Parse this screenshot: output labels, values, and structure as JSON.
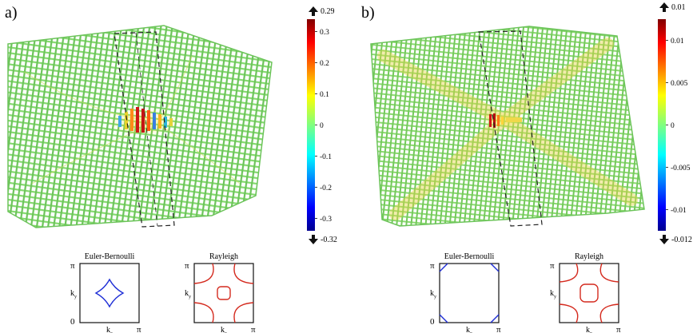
{
  "panels": [
    {
      "id": "a",
      "label": "a)",
      "colorbar": {
        "max_label": "0.29",
        "min_label": "-0.32",
        "ticks": [
          "0.3",
          "0.2",
          "0.1",
          "0",
          "-0.1",
          "-0.2",
          "-0.3"
        ],
        "tick_values": [
          0.3,
          0.2,
          0.1,
          0,
          -0.1,
          -0.2,
          -0.3
        ],
        "range": [
          -0.34,
          0.34
        ]
      },
      "insets": [
        {
          "title": "Euler-Bernoulli",
          "curve_color": "#1f2fd6",
          "contour": "diamond",
          "y_top": "π",
          "y_bottom": "0",
          "y_label": "k",
          "y_sub": "y",
          "x_label": "k",
          "x_sub": "x",
          "x_right": "π"
        },
        {
          "title": "Rayleigh",
          "curve_color": "#d42a1e",
          "contour": "cross-loop",
          "y_top": "π",
          "y_bottom": "",
          "y_label": "k",
          "y_sub": "y",
          "x_label": "k",
          "x_sub": "x",
          "x_right": "π"
        }
      ]
    },
    {
      "id": "b",
      "label": "b)",
      "colorbar": {
        "max_label": "0.01",
        "min_label": "-0.012",
        "ticks": [
          "0.01",
          "0.005",
          "0",
          "-0.005",
          "-0.01"
        ],
        "tick_values": [
          0.01,
          0.005,
          0,
          -0.005,
          -0.01
        ],
        "range": [
          -0.0125,
          0.0125
        ]
      },
      "insets": [
        {
          "title": "Euler-Bernoulli",
          "curve_color": "#1f2fd6",
          "contour": "corners",
          "y_top": "π",
          "y_bottom": "0",
          "y_label": "k",
          "y_sub": "y",
          "x_label": "k",
          "x_sub": "x",
          "x_right": "π"
        },
        {
          "title": "Rayleigh",
          "curve_color": "#d42a1e",
          "contour": "cross-loop-wide",
          "y_top": "π",
          "y_bottom": "",
          "y_label": "k",
          "y_sub": "y",
          "x_label": "k",
          "x_sub": "x",
          "x_right": "π"
        }
      ]
    }
  ],
  "colors": {
    "lattice": "#7fd36b",
    "lattice_dark": "#4fa64a",
    "highlight_box": "#222222"
  }
}
